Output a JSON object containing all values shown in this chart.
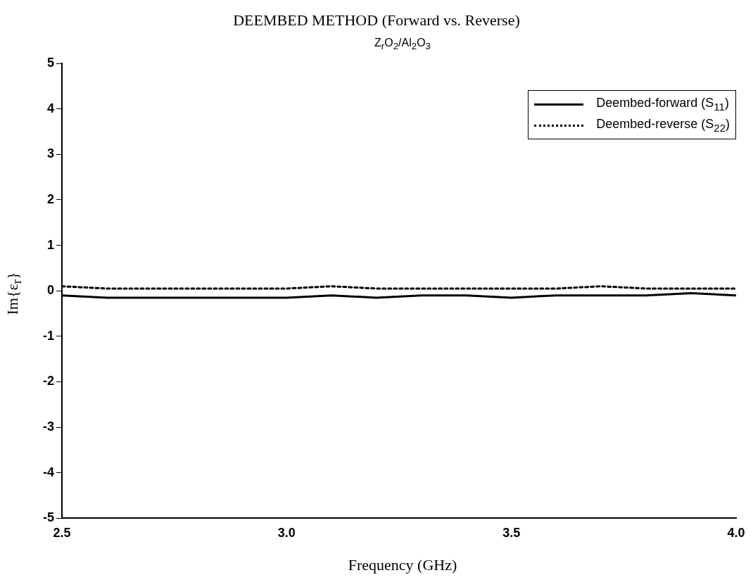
{
  "chart_data": {
    "type": "line",
    "title": "DEEMBED METHOD (Forward vs. Reverse)",
    "subtitle": "Z$_{r}$O$_{2}$/Al$_{2}$O$_{3}$",
    "xlabel": "Frequency (GHz)",
    "ylabel": "Im{ε$_{r}$}",
    "xlim": [
      2.5,
      4.0
    ],
    "xticks": [
      {
        "value": 2.5,
        "label": "2.5"
      },
      {
        "value": 3.0,
        "label": "3.0"
      },
      {
        "value": 3.5,
        "label": "3.5"
      },
      {
        "value": 4.0,
        "label": "4.0"
      }
    ],
    "ylim": [
      -5,
      5
    ],
    "yticks": [
      -5,
      -4,
      -3,
      -2,
      -1,
      0,
      1,
      2,
      3,
      4,
      5
    ],
    "grid": false,
    "legend": "top right",
    "marker": "none",
    "series": [
      {
        "name": "Deembed-forward (S$_{11}$)",
        "color": "#000000",
        "line_style": "solid",
        "x": [
          2.5,
          2.6,
          2.7,
          2.8,
          2.9,
          3.0,
          3.1,
          3.2,
          3.3,
          3.4,
          3.5,
          3.6,
          3.7,
          3.8,
          3.9,
          4.0
        ],
        "values": [
          -0.1,
          -0.15,
          -0.15,
          -0.15,
          -0.15,
          -0.15,
          -0.1,
          -0.15,
          -0.1,
          -0.1,
          -0.15,
          -0.1,
          -0.1,
          -0.1,
          -0.05,
          -0.1
        ]
      },
      {
        "name": "Deembed-reverse (S$_{22}$)",
        "color": "#000000",
        "line_style": "dotted",
        "x": [
          2.5,
          2.6,
          2.7,
          2.8,
          2.9,
          3.0,
          3.1,
          3.2,
          3.3,
          3.4,
          3.5,
          3.6,
          3.7,
          3.8,
          3.9,
          4.0
        ],
        "values": [
          0.1,
          0.05,
          0.05,
          0.05,
          0.05,
          0.05,
          0.1,
          0.05,
          0.05,
          0.05,
          0.05,
          0.05,
          0.1,
          0.05,
          0.05,
          0.05
        ]
      }
    ]
  }
}
